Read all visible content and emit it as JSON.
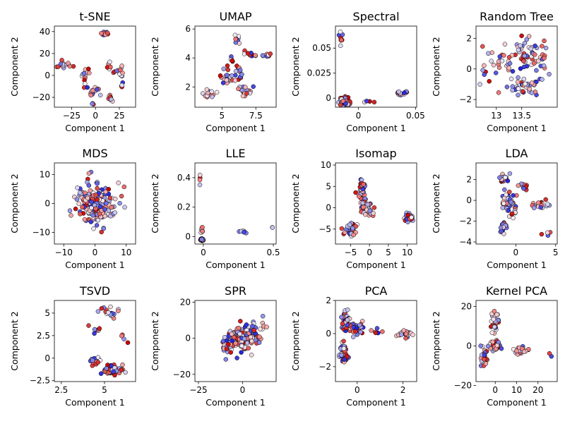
{
  "colors": {
    "blue": "#2222dd",
    "red": "#dd0000",
    "edge": "#000000",
    "white": "#ffffff"
  },
  "chart_data": [
    {
      "type": "scatter",
      "title": "t-SNE",
      "xlabel": "Component 1",
      "ylabel": "Component 2",
      "xlim": [
        -43,
        42
      ],
      "ylim": [
        -29,
        45
      ],
      "xticks": [
        -25,
        0,
        25
      ],
      "yticks": [
        -20,
        0,
        20,
        40
      ],
      "clusters": [
        [
          -33,
          10,
          6,
          4,
          14
        ],
        [
          -10,
          0,
          4,
          10,
          14
        ],
        [
          0,
          -15,
          5,
          4,
          14
        ],
        [
          15,
          -20,
          3,
          3,
          8
        ],
        [
          10,
          38,
          3,
          2,
          12
        ],
        [
          25,
          3,
          5,
          4,
          12
        ],
        [
          28,
          -10,
          2,
          2,
          4
        ],
        [
          14,
          8,
          3,
          3,
          6
        ],
        [
          -5,
          -25,
          3,
          2,
          3
        ]
      ]
    },
    {
      "type": "scatter",
      "title": "UMAP",
      "xlabel": "Component 1",
      "ylabel": "Component 2",
      "xlim": [
        3,
        9
      ],
      "ylim": [
        0.6,
        6.2
      ],
      "xticks": [
        5,
        7.5
      ],
      "yticks": [
        2,
        4,
        6
      ],
      "clusters": [
        [
          4,
          1.6,
          0.45,
          0.3,
          14
        ],
        [
          5.5,
          2.6,
          0.6,
          0.45,
          20
        ],
        [
          6.8,
          1.8,
          0.6,
          0.35,
          18
        ],
        [
          6.1,
          5.3,
          0.2,
          0.35,
          10
        ],
        [
          7.1,
          4.3,
          0.5,
          0.3,
          10
        ],
        [
          8.3,
          4.2,
          0.3,
          0.2,
          8
        ],
        [
          5.5,
          3.8,
          0.4,
          0.4,
          8
        ],
        [
          6.3,
          3.2,
          0.4,
          0.4,
          10
        ]
      ]
    },
    {
      "type": "scatter",
      "title": "Spectral",
      "xlabel": "Component 1",
      "ylabel": "Component 2",
      "xlim": [
        -0.02,
        0.051
      ],
      "ylim": [
        -0.009,
        0.072
      ],
      "xticks": [
        0,
        0.05
      ],
      "yticks": [
        0,
        0.025,
        0.05
      ],
      "clusters": [
        [
          -0.012,
          -0.003,
          0.003,
          0.003,
          90
        ],
        [
          -0.015,
          0.06,
          0.001,
          0.006,
          10
        ],
        [
          0.038,
          0.005,
          0.005,
          0.002,
          14
        ],
        [
          0.01,
          -0.003,
          0.004,
          0.002,
          4
        ]
      ]
    },
    {
      "type": "scatter",
      "title": "Random Tree",
      "xlabel": "Component 1",
      "ylabel": "Component 2",
      "xlim": [
        12.6,
        14.2
      ],
      "ylim": [
        -2.5,
        2.8
      ],
      "xticks": [
        13,
        13.5
      ],
      "yticks": [
        -2,
        0,
        2
      ],
      "clusters": [
        [
          13.6,
          1,
          0.25,
          0.7,
          40
        ],
        [
          13.5,
          -1.2,
          0.3,
          0.5,
          40
        ],
        [
          13.1,
          0.4,
          0.3,
          0.8,
          20
        ],
        [
          13.9,
          0.8,
          0.15,
          0.9,
          16
        ],
        [
          12.8,
          -0.5,
          0.15,
          1.2,
          8
        ]
      ]
    },
    {
      "type": "scatter",
      "title": "MDS",
      "xlabel": "Component 1",
      "ylabel": "Component 2",
      "xlim": [
        -13,
        13
      ],
      "ylim": [
        -14,
        14
      ],
      "xticks": [
        -10,
        0,
        10
      ],
      "yticks": [
        -10,
        0,
        10
      ],
      "clusters": [
        [
          0,
          0,
          5,
          6,
          180
        ]
      ]
    },
    {
      "type": "scatter",
      "title": "LLE",
      "xlabel": "Component 1",
      "ylabel": "Component 2",
      "xlim": [
        -0.06,
        0.52
      ],
      "ylim": [
        -0.05,
        0.5
      ],
      "xticks": [
        0,
        0.5
      ],
      "yticks": [
        0,
        0.2,
        0.4
      ],
      "clusters": [
        [
          -0.01,
          -0.02,
          0.007,
          0.005,
          120
        ],
        [
          -0.01,
          0.05,
          0.005,
          0.03,
          8
        ],
        [
          -0.025,
          0.42,
          0.005,
          0.05,
          4
        ],
        [
          0.28,
          0.035,
          0.06,
          0.01,
          6
        ],
        [
          0.49,
          0.06,
          0.005,
          0.003,
          2
        ]
      ]
    },
    {
      "type": "scatter",
      "title": "Isomap",
      "xlabel": "Component 1",
      "ylabel": "Component 2",
      "xlim": [
        -9,
        12.5
      ],
      "ylim": [
        -8.5,
        10.5
      ],
      "xticks": [
        -5,
        0,
        5,
        10
      ],
      "yticks": [
        -5,
        0,
        5,
        10
      ],
      "clusters": [
        [
          -2,
          4,
          1,
          2.5,
          50
        ],
        [
          -5,
          -5,
          1.4,
          1.4,
          40
        ],
        [
          -1,
          0,
          1.3,
          1.2,
          30
        ],
        [
          10.5,
          -2.2,
          1,
          0.9,
          28
        ],
        [
          1,
          -1,
          2,
          1,
          6
        ]
      ]
    },
    {
      "type": "scatter",
      "title": "LDA",
      "xlabel": "Component 1",
      "ylabel": "Component 2",
      "xlim": [
        -5,
        5.2
      ],
      "ylim": [
        -4.2,
        3.6
      ],
      "xticks": [
        0,
        5
      ],
      "yticks": [
        -4,
        -2,
        0,
        2
      ],
      "clusters": [
        [
          -1,
          0,
          0.8,
          0.8,
          40
        ],
        [
          -1.5,
          2,
          0.5,
          0.4,
          20
        ],
        [
          -1.5,
          -2.5,
          0.4,
          0.7,
          20
        ],
        [
          3.3,
          -0.5,
          0.9,
          0.3,
          20
        ],
        [
          1,
          1.5,
          0.5,
          0.4,
          10
        ],
        [
          4,
          -3.2,
          0.6,
          0.3,
          4
        ],
        [
          -0.5,
          -1,
          0.6,
          0.6,
          10
        ]
      ]
    },
    {
      "type": "scatter",
      "title": "TSVD",
      "xlabel": "Component 1",
      "ylabel": "Component 2",
      "xlim": [
        2.1,
        6.8
      ],
      "ylim": [
        -2.6,
        6.4
      ],
      "xticks": [
        2.5,
        5
      ],
      "yticks": [
        -2.5,
        0,
        2.5,
        5
      ],
      "clusters": [
        [
          5.5,
          -1.3,
          0.5,
          0.4,
          60
        ],
        [
          5.3,
          5,
          0.5,
          0.5,
          20
        ],
        [
          4.5,
          -0.2,
          0.3,
          0.4,
          16
        ],
        [
          4.5,
          3,
          0.3,
          1,
          8
        ],
        [
          6,
          2,
          0.3,
          1.5,
          4
        ]
      ]
    },
    {
      "type": "scatter",
      "title": "SPR",
      "xlabel": "Component 1",
      "ylabel": "Component 2",
      "xlim": [
        -27,
        19
      ],
      "ylim": [
        -24,
        21
      ],
      "xticks": [
        -25,
        0
      ],
      "yticks": [
        -20,
        0,
        20
      ],
      "clusters": [
        [
          0,
          0,
          6,
          6,
          150
        ],
        [
          -8,
          -3,
          4,
          5,
          25
        ],
        [
          8,
          5,
          4,
          5,
          15
        ]
      ]
    },
    {
      "type": "scatter",
      "title": "PCA",
      "xlabel": "Component 1",
      "ylabel": "Component 2",
      "xlim": [
        -0.95,
        2.6
      ],
      "ylim": [
        -2.9,
        2
      ],
      "xticks": [
        0,
        2
      ],
      "yticks": [
        -2,
        0,
        2
      ],
      "clusters": [
        [
          -0.5,
          0.8,
          0.15,
          0.5,
          40
        ],
        [
          -0.6,
          -1.2,
          0.15,
          0.6,
          40
        ],
        [
          -0.1,
          0.3,
          0.3,
          0.3,
          30
        ],
        [
          2.1,
          0,
          0.25,
          0.2,
          28
        ],
        [
          0.8,
          0.1,
          0.4,
          0.2,
          6
        ]
      ]
    },
    {
      "type": "scatter",
      "title": "Kernel PCA",
      "xlabel": "Component 1",
      "ylabel": "Component 2",
      "xlim": [
        -9,
        29
      ],
      "ylim": [
        -18,
        23
      ],
      "xticks": [
        0,
        10,
        20
      ],
      "yticks": [
        -20,
        0,
        20
      ],
      "clusters": [
        [
          0,
          0,
          2,
          2,
          60
        ],
        [
          -5,
          -6,
          1.5,
          3.5,
          30
        ],
        [
          0,
          12,
          2,
          4,
          30
        ],
        [
          12,
          -2,
          3,
          1.5,
          30
        ],
        [
          26,
          -4,
          1,
          1,
          2
        ]
      ]
    }
  ]
}
